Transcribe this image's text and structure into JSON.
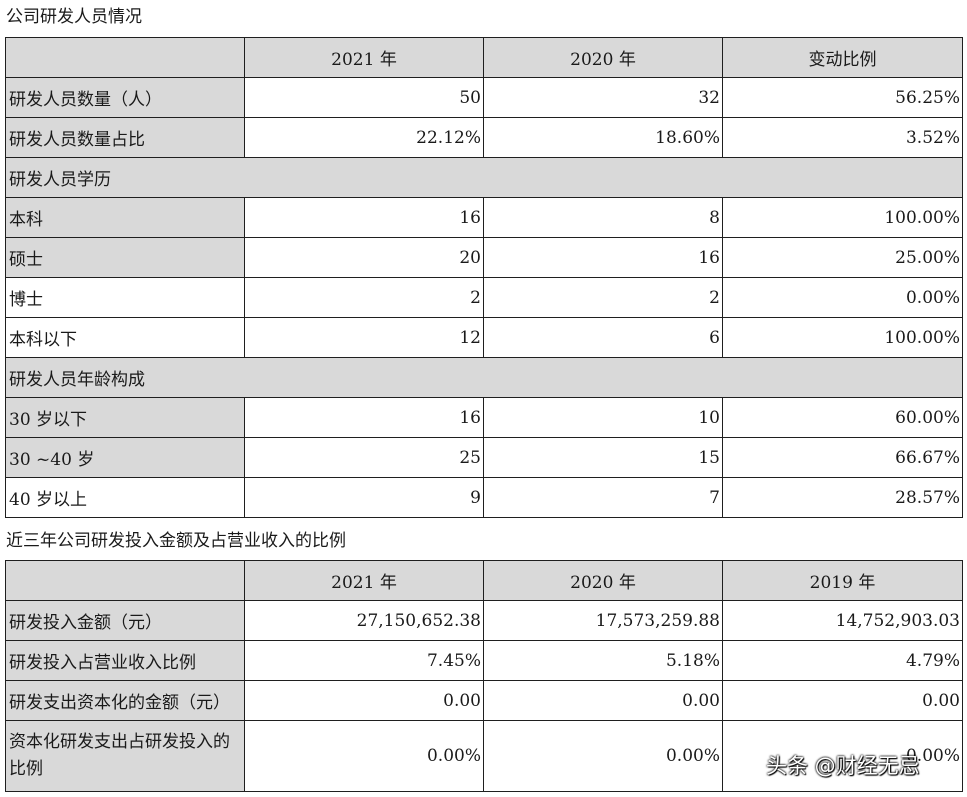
{
  "personnel": {
    "caption": "公司研发人员情况",
    "headers": [
      "",
      "2021 年",
      "2020 年",
      "变动比例"
    ],
    "rows": [
      {
        "label": "研发人员数量（人）",
        "v2021": "50",
        "v2020": "32",
        "change": "56.25%"
      },
      {
        "label": "研发人员数量占比",
        "v2021": "22.12%",
        "v2020": "18.60%",
        "change": "3.52%"
      },
      {
        "label": "研发人员学历"
      },
      {
        "label": "本科",
        "v2021": "16",
        "v2020": "8",
        "change": "100.00%"
      },
      {
        "label": "硕士",
        "v2021": "20",
        "v2020": "16",
        "change": "25.00%"
      },
      {
        "label": "博士",
        "v2021": "2",
        "v2020": "2",
        "change": "0.00%"
      },
      {
        "label": "本科以下",
        "v2021": "12",
        "v2020": "6",
        "change": "100.00%"
      },
      {
        "label": "研发人员年龄构成"
      },
      {
        "label": "30 岁以下",
        "v2021": "16",
        "v2020": "10",
        "change": "60.00%"
      },
      {
        "label": "30 ~40 岁",
        "v2021": "25",
        "v2020": "15",
        "change": "66.67%"
      },
      {
        "label": "40 岁以上",
        "v2021": "9",
        "v2020": "7",
        "change": "28.57%"
      }
    ]
  },
  "investment": {
    "caption": "近三年公司研发投入金额及占营业收入的比例",
    "headers": [
      "",
      "2021 年",
      "2020 年",
      "2019 年"
    ],
    "rows": [
      {
        "label": "研发投入金额（元）",
        "v2021": "27,150,652.38",
        "v2020": "17,573,259.88",
        "v2019": "14,752,903.03"
      },
      {
        "label": "研发投入占营业收入比例",
        "v2021": "7.45%",
        "v2020": "5.18%",
        "v2019": "4.79%"
      },
      {
        "label": "研发支出资本化的金额（元）",
        "v2021": "0.00",
        "v2020": "0.00",
        "v2019": "0.00"
      },
      {
        "label": "资本化研发支出占研发投入的比例",
        "v2021": "0.00%",
        "v2020": "0.00%",
        "v2019": "0.00%"
      }
    ]
  },
  "watermark": "头条 @财经无忌"
}
